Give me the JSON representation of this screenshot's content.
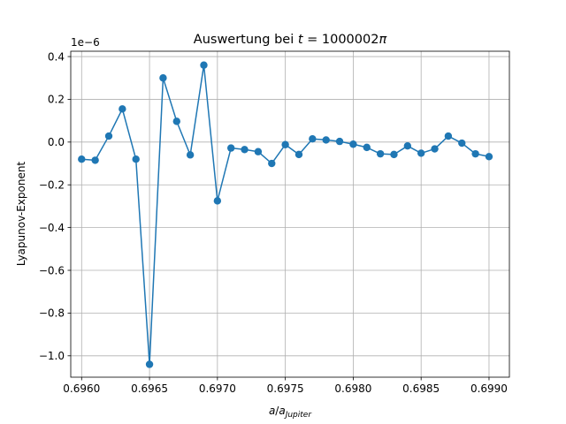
{
  "chart_data": {
    "type": "line",
    "title": "Auswertung bei t = 1000002π",
    "xlabel": "a/a_Jupiter",
    "ylabel": "Lyapunov-Exponent",
    "offset_label": "1e−6",
    "y_scale": 1e-06,
    "grid": true,
    "xlim": [
      0.69592,
      0.69915
    ],
    "ylim": [
      -1.1,
      0.425
    ],
    "x_ticks": [
      0.696,
      0.6965,
      0.697,
      0.6975,
      0.698,
      0.6985,
      0.699
    ],
    "x_tick_labels": [
      "0.6960",
      "0.6965",
      "0.6970",
      "0.6975",
      "0.6980",
      "0.6985",
      "0.6990"
    ],
    "y_ticks": [
      -1.0,
      -0.8,
      -0.6,
      -0.4,
      -0.2,
      0.0,
      0.2,
      0.4
    ],
    "y_tick_labels": [
      "−1.0",
      "−0.8",
      "−0.6",
      "−0.4",
      "−0.2",
      "0.0",
      "0.2",
      "0.4"
    ],
    "series": [
      {
        "color": "#1f77b4",
        "marker": "circle",
        "x": [
          0.696,
          0.6961,
          0.6962,
          0.6963,
          0.6964,
          0.6965,
          0.6966,
          0.6967,
          0.6968,
          0.6969,
          0.697,
          0.6971,
          0.6972,
          0.6973,
          0.6974,
          0.6975,
          0.6976,
          0.6977,
          0.6978,
          0.6979,
          0.698,
          0.6981,
          0.6982,
          0.6983,
          0.6984,
          0.6985,
          0.6986,
          0.6987,
          0.6988,
          0.6989,
          0.699
        ],
        "y": [
          -0.08,
          -0.085,
          0.028,
          0.155,
          -0.08,
          -1.04,
          0.3,
          0.097,
          -0.06,
          0.36,
          -0.275,
          -0.028,
          -0.035,
          -0.045,
          -0.1,
          -0.012,
          -0.058,
          0.015,
          0.01,
          0.003,
          -0.01,
          -0.025,
          -0.055,
          -0.058,
          -0.018,
          -0.052,
          -0.032,
          0.028,
          -0.005,
          -0.055,
          -0.068
        ]
      }
    ]
  }
}
